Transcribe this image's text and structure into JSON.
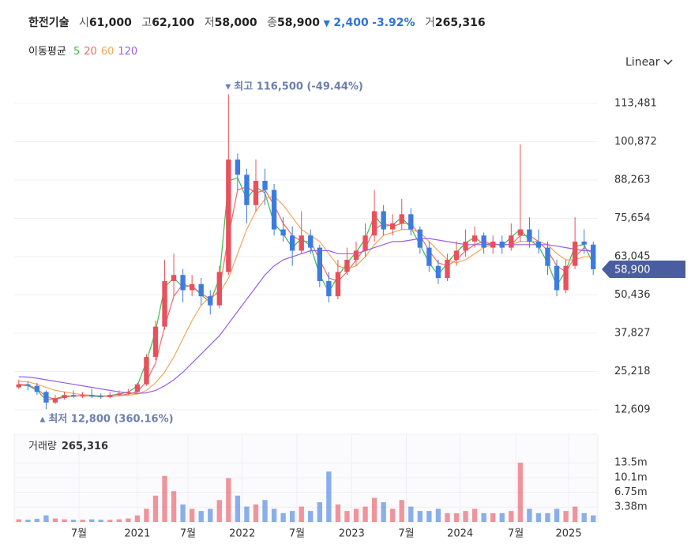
{
  "header": {
    "title": "한전기술",
    "open_label": "시",
    "open": "61,000",
    "high_label": "고",
    "high": "62,100",
    "low_label": "저",
    "low": "58,000",
    "close_label": "종",
    "close": "58,900",
    "change_arrow": "▼",
    "change": "2,400",
    "change_pct": "-3.92%",
    "volume_label": "거",
    "volume": "265,316",
    "scale": "Linear"
  },
  "chart_data": [
    {
      "type": "candlestick",
      "legend_title": "이동평균",
      "categories": [
        null,
        null,
        null,
        null,
        null,
        null,
        null,
        null,
        null,
        null,
        null,
        null,
        null,
        null,
        null,
        null,
        null,
        null,
        null,
        null,
        null,
        null,
        null,
        null,
        null,
        null,
        null,
        null,
        null,
        null,
        null,
        null,
        null,
        null,
        null,
        null,
        null,
        null,
        null,
        null,
        null,
        null,
        null,
        null,
        null,
        null,
        null,
        null,
        null,
        null,
        null,
        null,
        null,
        null,
        null,
        null,
        null,
        null,
        null,
        null,
        null,
        null,
        null,
        null
      ],
      "open": [
        20000,
        21000,
        20500,
        18500,
        15000,
        16500,
        17500,
        17000,
        17500,
        17000,
        16800,
        17500,
        18000,
        18500,
        21000,
        30000,
        40000,
        55000,
        57000,
        52000,
        54000,
        50000,
        47000,
        58000,
        95000,
        90000,
        80000,
        88000,
        85000,
        72000,
        70000,
        65000,
        70000,
        66000,
        55000,
        50000,
        58000,
        62000,
        65000,
        70000,
        78000,
        72000,
        74000,
        77000,
        72000,
        66000,
        60000,
        56000,
        62000,
        65000,
        68000,
        70000,
        66000,
        68000,
        66000,
        70000,
        72000,
        68000,
        66000,
        60000,
        52000,
        60000,
        68000,
        67000
      ],
      "high": [
        22500,
        22000,
        21500,
        19000,
        17500,
        18500,
        19000,
        18500,
        19500,
        18000,
        18500,
        19000,
        19500,
        21500,
        31000,
        42000,
        62000,
        64000,
        59000,
        57000,
        56000,
        52000,
        60000,
        116500,
        97000,
        92000,
        95000,
        92000,
        87000,
        76000,
        73000,
        78000,
        72000,
        67000,
        58000,
        62000,
        66000,
        68000,
        74000,
        85000,
        80000,
        77000,
        82000,
        79000,
        73000,
        68000,
        62000,
        64000,
        68000,
        72000,
        73000,
        71000,
        70000,
        70000,
        74000,
        100000,
        76000,
        72000,
        68000,
        62000,
        62000,
        76000,
        72000,
        68000
      ],
      "low": [
        19500,
        19000,
        17500,
        12800,
        14500,
        16000,
        16500,
        16500,
        16500,
        16200,
        16400,
        17000,
        17500,
        18000,
        20500,
        29000,
        39000,
        50000,
        48000,
        50000,
        47000,
        44000,
        46000,
        57000,
        85000,
        74000,
        78000,
        80000,
        70000,
        68000,
        60000,
        64000,
        64000,
        53000,
        48000,
        49000,
        57000,
        60000,
        63000,
        68000,
        70000,
        70000,
        72000,
        70000,
        64000,
        58000,
        54000,
        55000,
        60000,
        63000,
        66000,
        64000,
        64000,
        64000,
        65000,
        68000,
        66000,
        64000,
        57000,
        50000,
        51000,
        59000,
        64000,
        57000
      ],
      "close": [
        21000,
        20500,
        18500,
        15000,
        16500,
        17500,
        17000,
        17500,
        17000,
        16800,
        17500,
        18000,
        18500,
        21000,
        30000,
        40000,
        55000,
        57000,
        52000,
        54000,
        50000,
        47000,
        58000,
        95000,
        90000,
        80000,
        88000,
        85000,
        72000,
        70000,
        65000,
        70000,
        66000,
        55000,
        50000,
        58000,
        62000,
        65000,
        70000,
        78000,
        72000,
        74000,
        77000,
        72000,
        66000,
        60000,
        56000,
        62000,
        65000,
        68000,
        70000,
        66000,
        68000,
        66000,
        70000,
        72000,
        68000,
        66000,
        60000,
        52000,
        60000,
        68000,
        67000,
        58900
      ],
      "up_color": "#e8505b",
      "down_color": "#3d7be0",
      "series": [
        {
          "name": "5",
          "color": "#3dbb4a",
          "values": [
            20800,
            20600,
            19000,
            15800,
            16200,
            17200,
            17100,
            17300,
            17100,
            16900,
            17300,
            17800,
            18400,
            20500,
            28500,
            38500,
            53000,
            56000,
            53000,
            53500,
            50500,
            48000,
            56000,
            88000,
            89000,
            82000,
            86000,
            84000,
            74000,
            70500,
            66000,
            69000,
            66500,
            57000,
            51500,
            56500,
            61000,
            64500,
            69000,
            76500,
            73000,
            73500,
            76000,
            72500,
            67000,
            61000,
            57000,
            61000,
            64500,
            67500,
            69500,
            67000,
            67500,
            66500,
            69500,
            72000,
            68500,
            66500,
            61000,
            53500,
            58500,
            66500,
            67000,
            60500
          ]
        },
        {
          "name": "20",
          "color": "#ef6a6a",
          "values": [
            21000,
            20800,
            19500,
            17000,
            16000,
            16800,
            17200,
            17200,
            17300,
            17100,
            17000,
            17300,
            17800,
            18500,
            22000,
            28000,
            40000,
            50000,
            54000,
            53000,
            51000,
            49000,
            52000,
            70000,
            85000,
            86000,
            84000,
            85000,
            80000,
            74000,
            70000,
            68000,
            68000,
            62000,
            56000,
            55000,
            58000,
            62000,
            66000,
            72000,
            74000,
            73000,
            74000,
            74000,
            70000,
            65000,
            61000,
            60000,
            62000,
            65000,
            67000,
            68000,
            67000,
            67000,
            67000,
            70000,
            70000,
            68000,
            65000,
            60000,
            58000,
            63000,
            66000,
            64000
          ]
        },
        {
          "name": "60",
          "color": "#f2a65a",
          "values": [
            22000,
            21800,
            21000,
            20000,
            19000,
            18500,
            18000,
            17600,
            17400,
            17300,
            17200,
            17200,
            17400,
            17800,
            19000,
            21500,
            25000,
            30000,
            36000,
            42000,
            47000,
            50000,
            51000,
            56000,
            64000,
            72000,
            78000,
            82000,
            83000,
            80000,
            76000,
            72000,
            70000,
            68000,
            64000,
            60000,
            59000,
            60000,
            63000,
            67000,
            70000,
            71000,
            72000,
            72000,
            71000,
            68000,
            65000,
            62000,
            61000,
            62000,
            64000,
            66000,
            67000,
            67000,
            67000,
            68000,
            68000,
            68000,
            67000,
            64000,
            62000,
            62000,
            63000,
            63000
          ]
        },
        {
          "name": "120",
          "color": "#9b5de5",
          "values": [
            23500,
            23400,
            23000,
            22500,
            22000,
            21500,
            21000,
            20500,
            20000,
            19500,
            19000,
            18500,
            18200,
            18000,
            18200,
            19000,
            20500,
            22500,
            25000,
            28000,
            31000,
            34000,
            37000,
            41000,
            45000,
            49000,
            53000,
            57000,
            60000,
            62000,
            63000,
            64000,
            65000,
            65000,
            65000,
            64000,
            64000,
            64000,
            65000,
            66000,
            67000,
            68000,
            68000,
            68500,
            69000,
            69000,
            68500,
            68000,
            67500,
            67000,
            67000,
            67000,
            67000,
            67000,
            67000,
            67000,
            67000,
            67000,
            67000,
            66500,
            66000,
            65500,
            65000,
            65000
          ]
        }
      ],
      "xlim": [
        0,
        64
      ],
      "xticks": [
        {
          "value": 7.1,
          "label": "7월"
        },
        {
          "value": 13.5,
          "label": "2021"
        },
        {
          "value": 19.05,
          "label": "7월"
        },
        {
          "value": 25.0,
          "label": "2022"
        },
        {
          "value": 31.0,
          "label": "7월"
        },
        {
          "value": 37.0,
          "label": "2023"
        },
        {
          "value": 43.0,
          "label": "7월"
        },
        {
          "value": 48.9,
          "label": "2024"
        },
        {
          "value": 55.0,
          "label": "7월"
        },
        {
          "value": 60.8,
          "label": "2025"
        }
      ],
      "ylim": [
        8449,
        122840
      ],
      "yticks": [
        {
          "value": 12609,
          "label": "12,609"
        },
        {
          "value": 25218,
          "label": "25,218"
        },
        {
          "value": 37827,
          "label": "37,827"
        },
        {
          "value": 50436,
          "label": "50,436"
        },
        {
          "value": 63045,
          "label": "63,045"
        },
        {
          "value": 75654,
          "label": "75,654"
        },
        {
          "value": 88263,
          "label": "88,263"
        },
        {
          "value": 100872,
          "label": "100,872"
        },
        {
          "value": 113481,
          "label": "113,481"
        }
      ],
      "grid": true,
      "annotations": {
        "high_arrow": "▼",
        "high_text": "최고 116,500 (-49.44%)",
        "low_arrow": "▲",
        "low_text": "최저 12,800 (360.16%)",
        "last_price": "58,900"
      },
      "last_color": "#4a5d9e"
    },
    {
      "type": "bar",
      "title": "거래량",
      "title_value": "265,316",
      "values": [
        600000,
        500000,
        700000,
        1500000,
        800000,
        600000,
        500000,
        500000,
        600000,
        500000,
        500000,
        600000,
        800000,
        1500000,
        3000000,
        6000000,
        10500000,
        7000000,
        4000000,
        3000000,
        2500000,
        3000000,
        5000000,
        10000000,
        6000000,
        3500000,
        4000000,
        5000000,
        3000000,
        2000000,
        2500000,
        3500000,
        2500000,
        4500000,
        11500000,
        4000000,
        2500000,
        3000000,
        3500000,
        5500000,
        4500000,
        3000000,
        5000000,
        3500000,
        2500000,
        2500000,
        3000000,
        2000000,
        2000000,
        2500000,
        3000000,
        2000000,
        2000000,
        2000000,
        2500000,
        13500000,
        3000000,
        2000000,
        2000000,
        3000000,
        2500000,
        3500000,
        2000000,
        1500000
      ],
      "ylim": [
        0,
        20000000
      ],
      "yticks": [
        {
          "value": 3380000,
          "label": "3.38m"
        },
        {
          "value": 6750000,
          "label": "6.75m"
        },
        {
          "value": 10100000,
          "label": "10.1m"
        },
        {
          "value": 13500000,
          "label": "13.5m"
        }
      ],
      "grid": true
    }
  ]
}
